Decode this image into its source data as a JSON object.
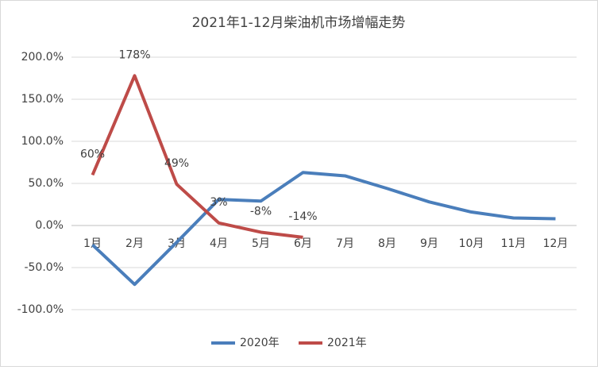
{
  "chart_data": {
    "type": "line",
    "title": "2021年1-12月柴油机市场增幅走势",
    "categories": [
      "1月",
      "2月",
      "3月",
      "4月",
      "5月",
      "6月",
      "7月",
      "8月",
      "9月",
      "10月",
      "11月",
      "12月"
    ],
    "series": [
      {
        "name": "2020年",
        "color": "#4a7ebb",
        "values": [
          -23,
          -70,
          -20,
          31,
          29,
          63,
          59,
          44,
          28,
          16,
          9,
          8
        ]
      },
      {
        "name": "2021年",
        "color": "#be4b48",
        "values": [
          60,
          178,
          49,
          3,
          -8,
          -14,
          null,
          null,
          null,
          null,
          null,
          null
        ],
        "value_labels": [
          "60%",
          "178%",
          "49%",
          "3%",
          "-8%",
          "-14%",
          null,
          null,
          null,
          null,
          null,
          null
        ]
      }
    ],
    "ylim": [
      -100,
      200
    ],
    "yticks": [
      {
        "value": -100,
        "label": "-100.0%"
      },
      {
        "value": -50,
        "label": "-50.0%"
      },
      {
        "value": 0,
        "label": "0.0%"
      },
      {
        "value": 50,
        "label": "50.0%"
      },
      {
        "value": 100,
        "label": "100.0%"
      },
      {
        "value": 150,
        "label": "150.0%"
      },
      {
        "value": 200,
        "label": "200.0%"
      }
    ],
    "grid": true,
    "legend": "bottom"
  }
}
